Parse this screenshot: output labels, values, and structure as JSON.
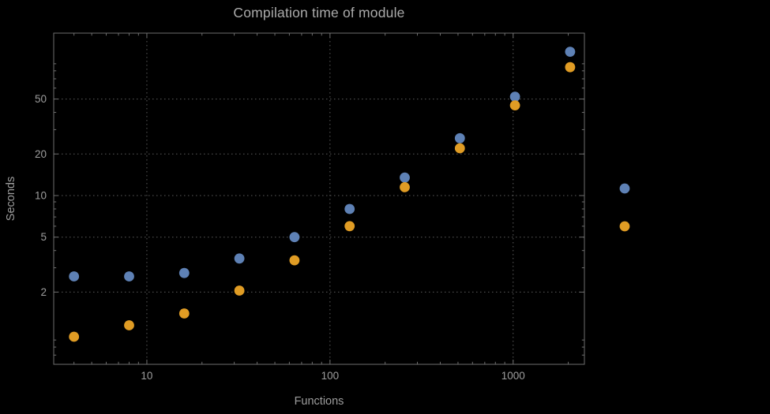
{
  "chart_data": {
    "type": "scatter",
    "title": "Compilation time of module",
    "xlabel": "Functions",
    "ylabel": "Seconds",
    "x_scale": "log",
    "y_scale": "log",
    "xlim": [
      3.1,
      2450
    ],
    "ylim": [
      0.6,
      150
    ],
    "x_ticks": [
      10,
      100,
      1000
    ],
    "y_ticks": [
      2,
      5,
      10,
      20,
      50
    ],
    "grid": "dotted-major-both-axes",
    "legend_position": "right-center",
    "x": [
      4,
      8,
      16,
      32,
      64,
      128,
      256,
      512,
      1024,
      2048
    ],
    "series": [
      {
        "name": "series-blue",
        "color": "#5e81b5",
        "values": [
          2.6,
          2.6,
          2.75,
          3.5,
          5.0,
          8.0,
          13.5,
          26,
          52,
          110
        ]
      },
      {
        "name": "series-orange",
        "color": "#e09c24",
        "values": [
          0.95,
          1.15,
          1.4,
          2.05,
          3.4,
          6.0,
          11.5,
          22,
          45,
          85
        ]
      }
    ],
    "legend_markers": {
      "colors": [
        "#5e81b5",
        "#e09c24"
      ],
      "labels": [
        "",
        ""
      ]
    }
  },
  "colors": {
    "background": "#000000",
    "frame": "#6e6e6e",
    "grid": "#5c5c5c",
    "text": "#9d9d9d",
    "title_text": "#ababab"
  }
}
